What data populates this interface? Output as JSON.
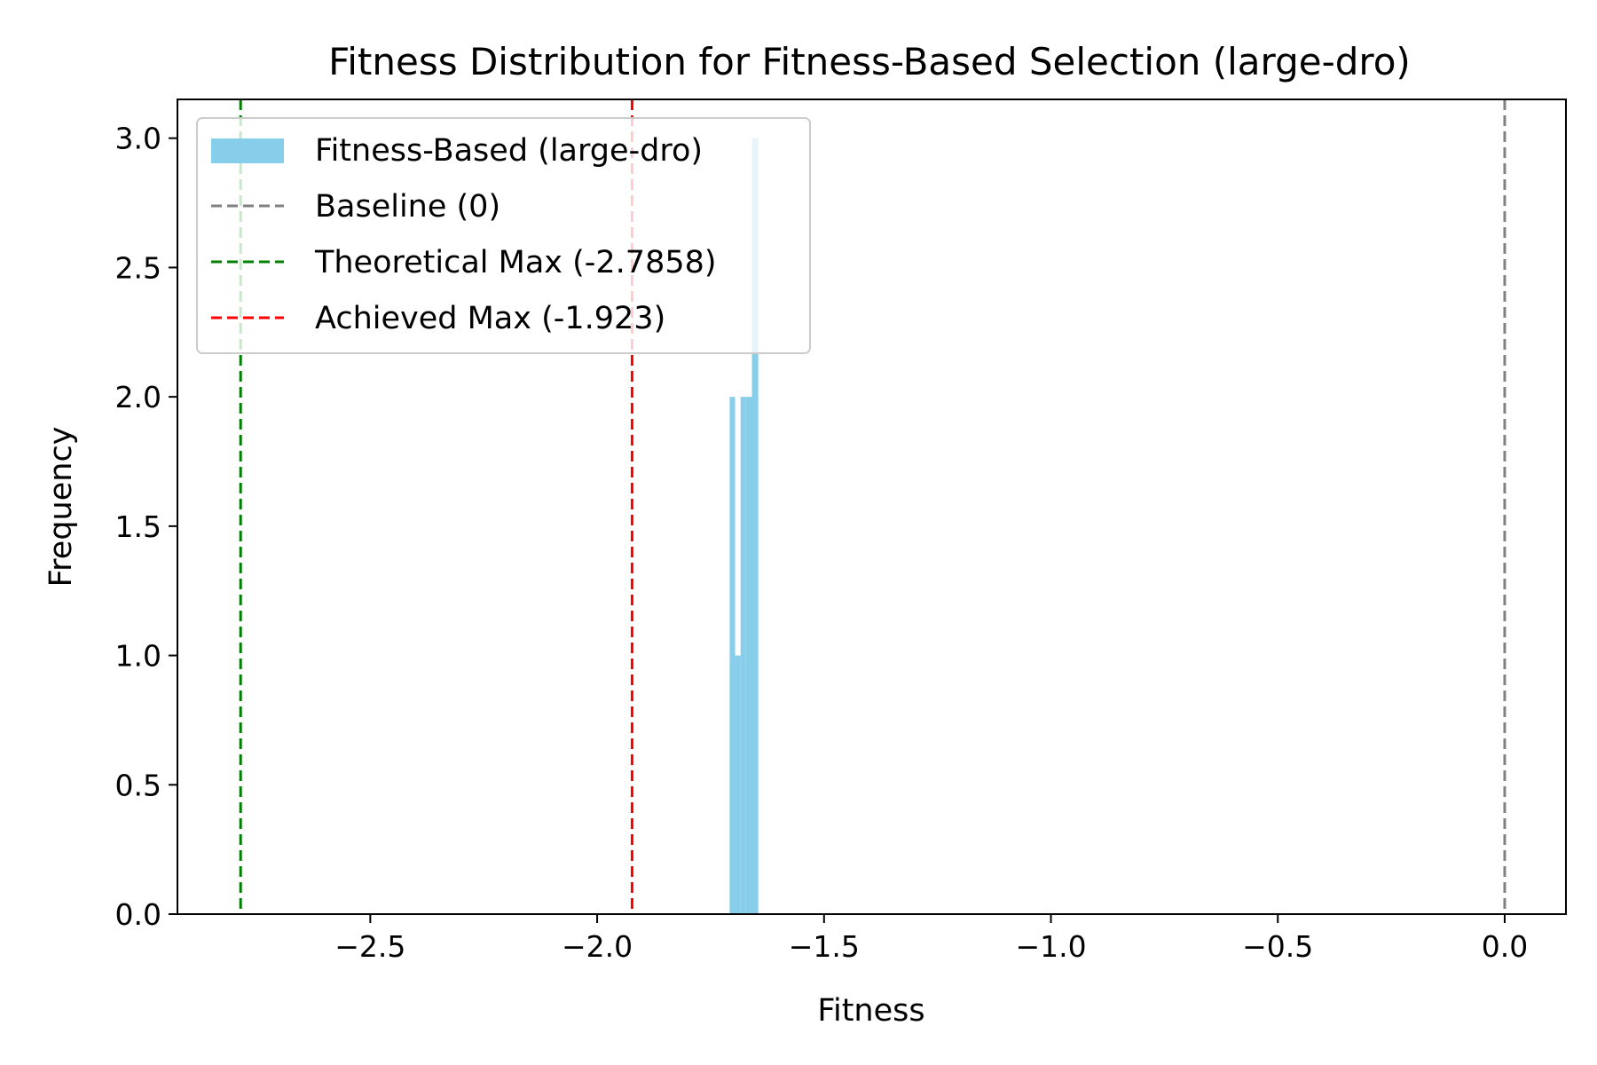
{
  "chart_data": {
    "type": "bar",
    "title": "Fitness Distribution for Fitness-Based Selection (large-dro)",
    "xlabel": "Fitness",
    "ylabel": "Frequency",
    "xlim": [
      -2.925,
      0.135
    ],
    "ylim": [
      0,
      3.15
    ],
    "grid": false,
    "legend_position": "top-left",
    "x_ticks": [
      -2.5,
      -2.0,
      -1.5,
      -1.0,
      -0.5,
      0.0
    ],
    "x_tick_labels": [
      "−2.5",
      "−2.0",
      "−1.5",
      "−1.0",
      "−0.5",
      "0.0"
    ],
    "y_ticks": [
      0.0,
      0.5,
      1.0,
      1.5,
      2.0,
      2.5,
      3.0
    ],
    "y_tick_labels": [
      "0.0",
      "0.5",
      "1.0",
      "1.5",
      "2.0",
      "2.5",
      "3.0"
    ],
    "series": [
      {
        "name": "Fitness-Based (large-dro)",
        "color": "#87CEEB",
        "bins": [
          {
            "x0": -1.708,
            "x1": -1.696,
            "value": 2
          },
          {
            "x0": -1.696,
            "x1": -1.684,
            "value": 1
          },
          {
            "x0": -1.684,
            "x1": -1.672,
            "value": 2
          },
          {
            "x0": -1.672,
            "x1": -1.659,
            "value": 2
          },
          {
            "x0": -1.659,
            "x1": -1.645,
            "value": 3
          }
        ]
      }
    ],
    "reference_lines": [
      {
        "name": "Baseline (0)",
        "x": 0,
        "color": "#808080"
      },
      {
        "name": "Theoretical Max (-2.7858)",
        "x": -2.7858,
        "color": "#008000"
      },
      {
        "name": "Achieved Max (-1.923)",
        "x": -1.923,
        "color": "#FF0000"
      }
    ]
  }
}
